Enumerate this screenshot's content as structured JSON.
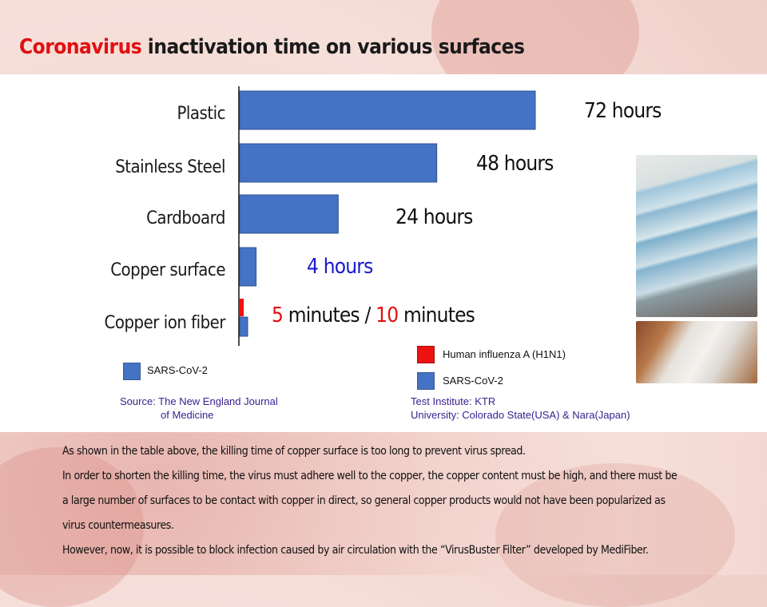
{
  "title": {
    "accent": "Coronavirus",
    "rest": " inactivation time on various surfaces"
  },
  "colors": {
    "sars": "#4472c4",
    "h1n1": "#ee1111",
    "accent": "#e01010",
    "value_blue": "#1a1ad0"
  },
  "chart_data": {
    "type": "bar",
    "orientation": "horizontal",
    "unit": "hours",
    "categories": [
      "Plastic",
      "Stainless Steel",
      "Cardboard",
      "Copper surface",
      "Copper ion fiber"
    ],
    "series": [
      {
        "name": "SARS-CoV-2",
        "values": [
          72,
          48,
          24,
          4,
          0.1667
        ]
      },
      {
        "name": "Human influenza A (H1N1)",
        "values": [
          null,
          null,
          null,
          null,
          0.0833
        ]
      }
    ],
    "value_labels": [
      "72 hours",
      "48 hours",
      "24 hours",
      "4 hours"
    ],
    "copper_ion_label": {
      "num1": "5",
      "text1": " minutes / ",
      "num2": "10",
      "text2": " minutes"
    }
  },
  "legend": {
    "left": "SARS-CoV-2",
    "right_h1n1": "Human influenza A (H1N1)",
    "right_sars": "SARS-CoV-2"
  },
  "sources": {
    "left_line1": "Source: The New England Journal",
    "left_line2": "of Medicine",
    "right_line1": "Test Institute: KTR",
    "right_line2": "University: Colorado State(USA) & Nara(Japan)"
  },
  "body": [
    "As shown in the table above, the killing time of copper surface is too long to prevent virus spread.",
    "In order to shorten the killing time, the virus must adhere well to the copper, the copper content must be high, and there must be",
    "a large number of surfaces to be contact with copper in direct, so general copper products would not have been popularized as",
    "virus countermeasures.",
    "However, now, it is possible to block infection caused by air circulation with the “VirusBuster Filter” developed by MediFiber."
  ]
}
